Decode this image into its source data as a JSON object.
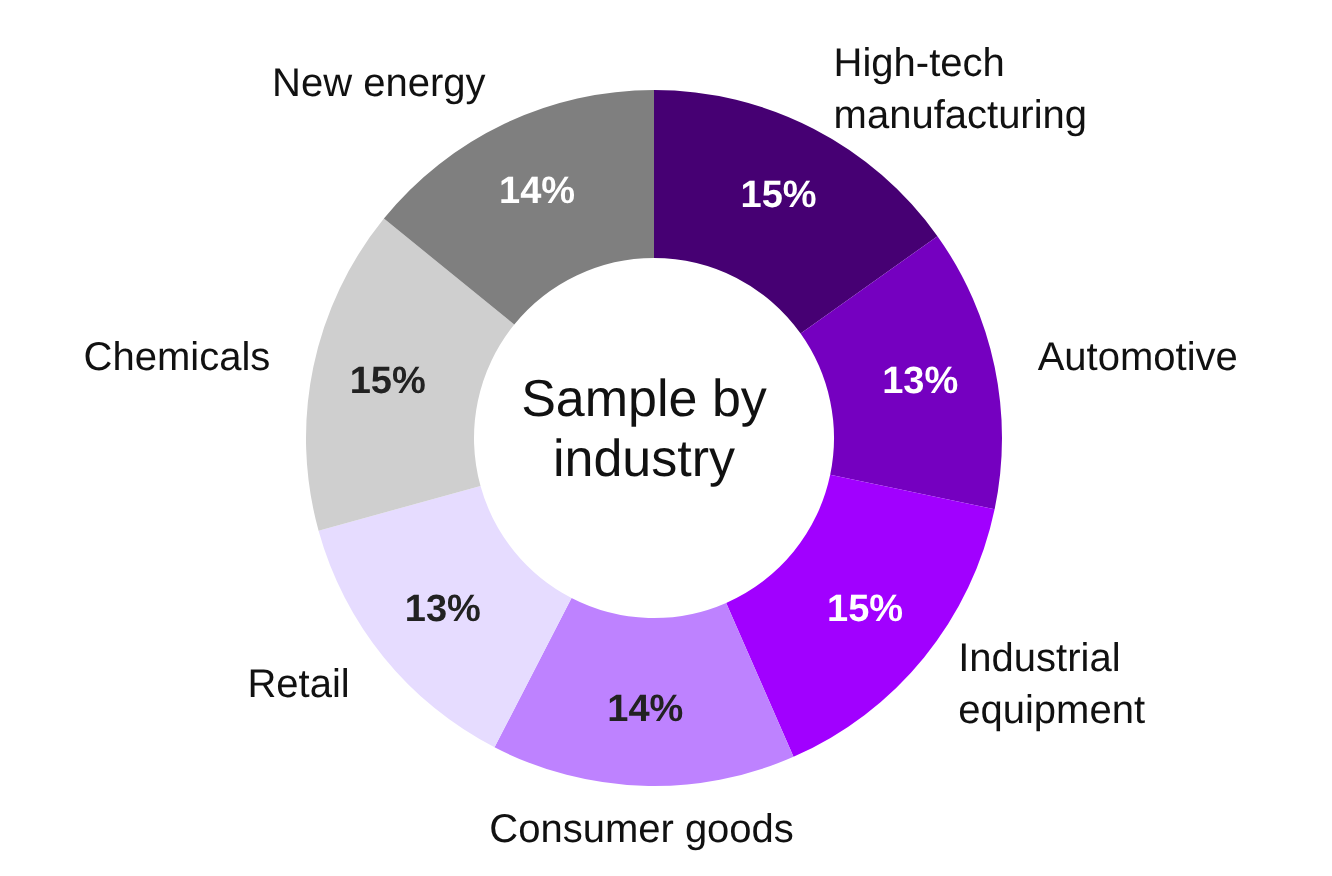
{
  "chart_data": {
    "type": "donut",
    "title": "Sample by industry",
    "categories": [
      "High-tech manufacturing",
      "Automotive",
      "Industrial equipment",
      "Consumer goods",
      "Retail",
      "Chemicals",
      "New energy"
    ],
    "values": [
      15,
      13,
      15,
      14,
      13,
      15,
      14
    ],
    "value_labels": [
      "15%",
      "13%",
      "15%",
      "14%",
      "13%",
      "15%",
      "14%"
    ],
    "colors": [
      "#460073",
      "#7500c0",
      "#a100ff",
      "#be82ff",
      "#e6dcff",
      "#cfcfcf",
      "#7f7f7f"
    ]
  }
}
